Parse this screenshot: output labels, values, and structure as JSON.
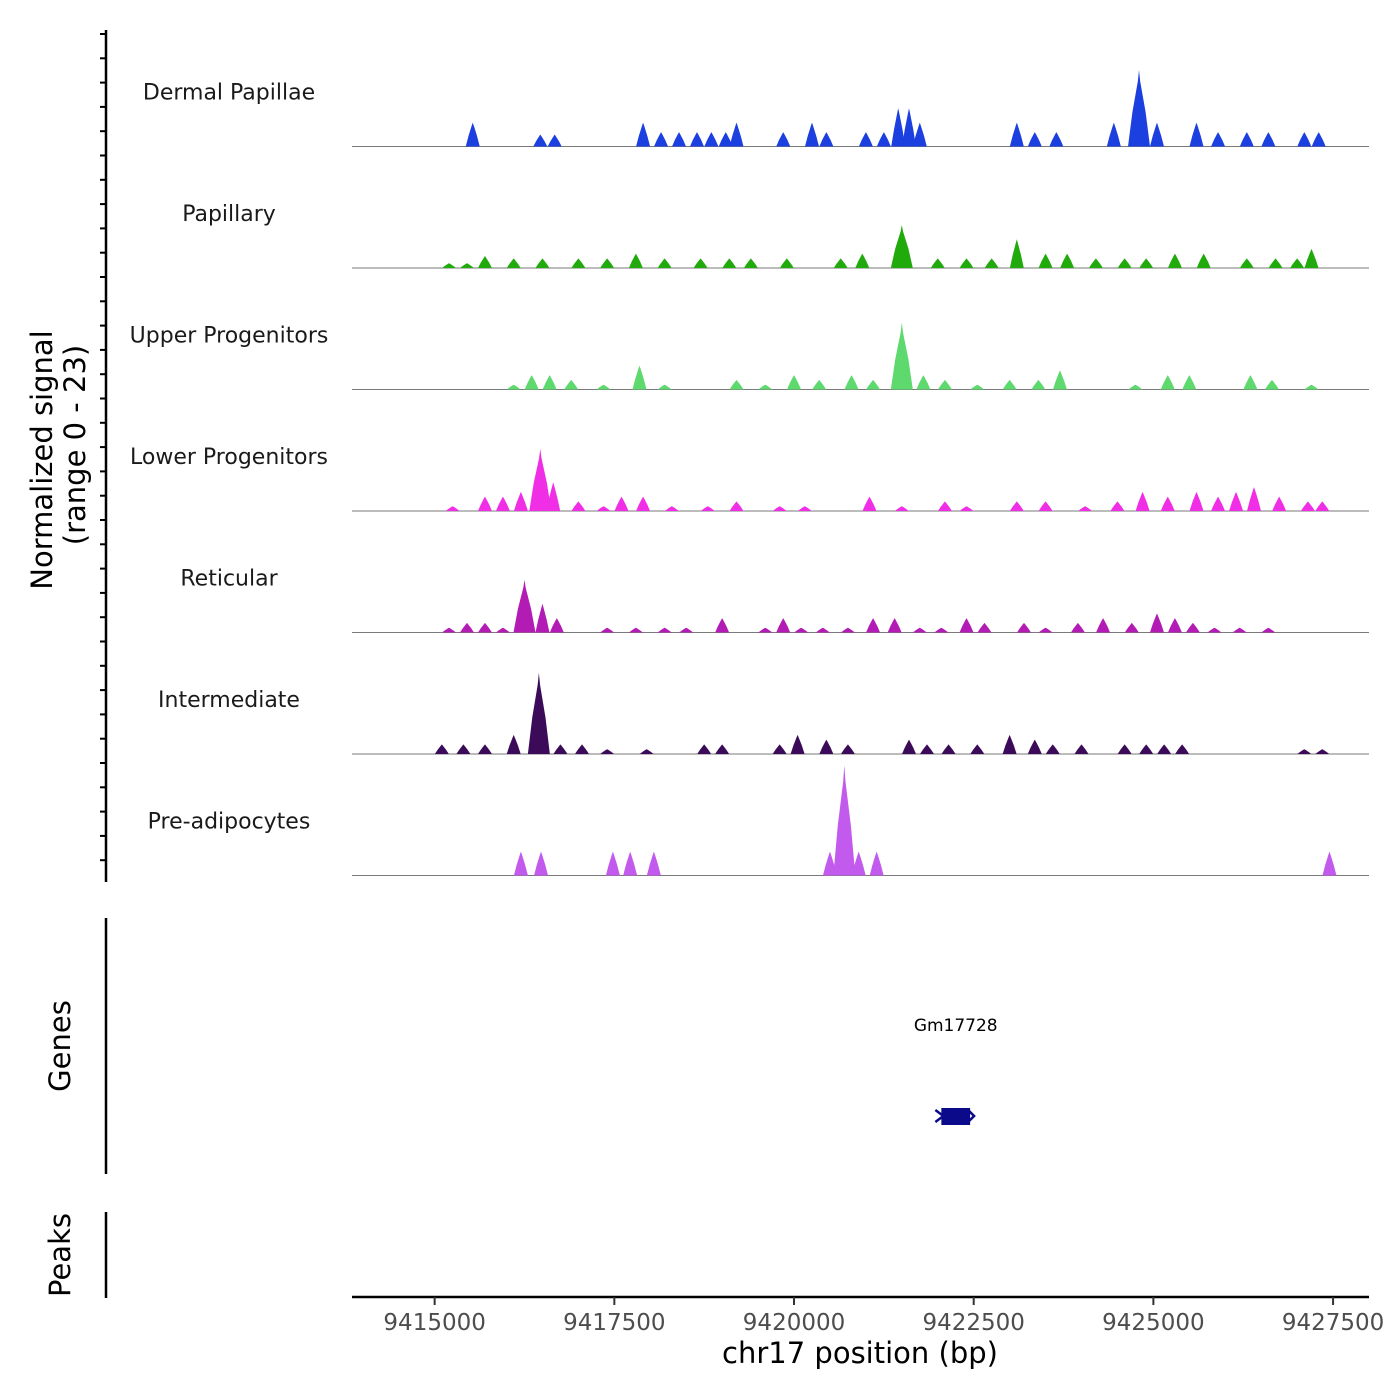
{
  "chart_data": {
    "type": "area",
    "title": "",
    "xlabel": "chr17 position (bp)",
    "ylabel": "Normalized signal",
    "ylabel_sub": "(range 0 - 23)",
    "xlim": [
      9413850,
      9428000
    ],
    "ylim": [
      0,
      23
    ],
    "x_ticks": [
      9415000,
      9417500,
      9420000,
      9422500,
      9425000,
      9427500
    ],
    "x_tick_labels": [
      "9415000",
      "9417500",
      "9420000",
      "9422500",
      "9425000",
      "9427500"
    ],
    "tracks": [
      {
        "name": "Dermal Papillae",
        "color": "#1c3fe0",
        "peaks": [
          [
            9415530,
            5
          ],
          [
            9416470,
            2.5
          ],
          [
            9416670,
            2.5
          ],
          [
            9417900,
            5
          ],
          [
            9418150,
            3
          ],
          [
            9418400,
            3
          ],
          [
            9418650,
            3
          ],
          [
            9418850,
            3
          ],
          [
            9419050,
            3
          ],
          [
            9419200,
            5
          ],
          [
            9419850,
            3
          ],
          [
            9420250,
            5
          ],
          [
            9420450,
            3
          ],
          [
            9421000,
            3
          ],
          [
            9421250,
            3
          ],
          [
            9421450,
            8
          ],
          [
            9421600,
            8
          ],
          [
            9421750,
            5
          ],
          [
            9423100,
            5
          ],
          [
            9423350,
            3
          ],
          [
            9423650,
            3
          ],
          [
            9424450,
            5
          ],
          [
            9424800,
            16
          ],
          [
            9425050,
            5
          ],
          [
            9425600,
            5
          ],
          [
            9425900,
            3
          ],
          [
            9426300,
            3
          ],
          [
            9426600,
            3
          ],
          [
            9427100,
            3
          ],
          [
            9427300,
            3
          ]
        ]
      },
      {
        "name": "Papillary",
        "color": "#20aa0c",
        "peaks": [
          [
            9415200,
            1
          ],
          [
            9415450,
            1
          ],
          [
            9415700,
            2.5
          ],
          [
            9416100,
            2
          ],
          [
            9416500,
            2
          ],
          [
            9417000,
            2
          ],
          [
            9417400,
            2
          ],
          [
            9417800,
            3
          ],
          [
            9418200,
            2
          ],
          [
            9418700,
            2
          ],
          [
            9419100,
            2
          ],
          [
            9419400,
            2
          ],
          [
            9419900,
            2
          ],
          [
            9420650,
            2
          ],
          [
            9420950,
            3
          ],
          [
            9421500,
            9
          ],
          [
            9422000,
            2
          ],
          [
            9422400,
            2
          ],
          [
            9422750,
            2
          ],
          [
            9423100,
            6
          ],
          [
            9423500,
            3
          ],
          [
            9423800,
            3
          ],
          [
            9424200,
            2
          ],
          [
            9424600,
            2
          ],
          [
            9424900,
            2
          ],
          [
            9425300,
            3
          ],
          [
            9425700,
            3
          ],
          [
            9426300,
            2
          ],
          [
            9426700,
            2
          ],
          [
            9427000,
            2
          ],
          [
            9427200,
            4
          ]
        ]
      },
      {
        "name": "Upper Progenitors",
        "color": "#5ed96e",
        "peaks": [
          [
            9416100,
            1
          ],
          [
            9416350,
            3
          ],
          [
            9416600,
            3
          ],
          [
            9416900,
            2
          ],
          [
            9417350,
            1
          ],
          [
            9417850,
            5
          ],
          [
            9418200,
            1
          ],
          [
            9419200,
            2
          ],
          [
            9419600,
            1
          ],
          [
            9420000,
            3
          ],
          [
            9420350,
            2
          ],
          [
            9420800,
            3
          ],
          [
            9421100,
            2
          ],
          [
            9421500,
            14
          ],
          [
            9421800,
            3
          ],
          [
            9422100,
            2
          ],
          [
            9422550,
            1
          ],
          [
            9423000,
            2
          ],
          [
            9423400,
            2
          ],
          [
            9423700,
            4
          ],
          [
            9424750,
            1
          ],
          [
            9425200,
            3
          ],
          [
            9425500,
            3
          ],
          [
            9426350,
            3
          ],
          [
            9426650,
            2
          ],
          [
            9427200,
            1
          ]
        ]
      },
      {
        "name": "Lower Progenitors",
        "color": "#ef2ee6",
        "peaks": [
          [
            9415250,
            1
          ],
          [
            9415700,
            3
          ],
          [
            9415950,
            3
          ],
          [
            9416200,
            4
          ],
          [
            9416470,
            13
          ],
          [
            9416650,
            6
          ],
          [
            9417000,
            2
          ],
          [
            9417350,
            1
          ],
          [
            9417600,
            3
          ],
          [
            9417900,
            3
          ],
          [
            9418300,
            1
          ],
          [
            9418800,
            1
          ],
          [
            9419200,
            2
          ],
          [
            9419800,
            1
          ],
          [
            9420150,
            1
          ],
          [
            9421050,
            3
          ],
          [
            9421500,
            1
          ],
          [
            9422100,
            2
          ],
          [
            9422400,
            1
          ],
          [
            9423100,
            2
          ],
          [
            9423500,
            2
          ],
          [
            9424050,
            1
          ],
          [
            9424500,
            2
          ],
          [
            9424850,
            4
          ],
          [
            9425200,
            3
          ],
          [
            9425600,
            4
          ],
          [
            9425900,
            3
          ],
          [
            9426150,
            4
          ],
          [
            9426400,
            5
          ],
          [
            9426750,
            3
          ],
          [
            9427150,
            2
          ],
          [
            9427350,
            2
          ]
        ]
      },
      {
        "name": "Reticular",
        "color": "#b31cb4",
        "peaks": [
          [
            9415200,
            1
          ],
          [
            9415450,
            2
          ],
          [
            9415700,
            2
          ],
          [
            9415950,
            1
          ],
          [
            9416250,
            11
          ],
          [
            9416500,
            6
          ],
          [
            9416700,
            3
          ],
          [
            9417400,
            1
          ],
          [
            9417800,
            1
          ],
          [
            9418200,
            1
          ],
          [
            9418500,
            1
          ],
          [
            9419000,
            3
          ],
          [
            9419600,
            1
          ],
          [
            9419850,
            3
          ],
          [
            9420100,
            1
          ],
          [
            9420400,
            1
          ],
          [
            9420750,
            1
          ],
          [
            9421100,
            3
          ],
          [
            9421400,
            3
          ],
          [
            9421750,
            1
          ],
          [
            9422050,
            1
          ],
          [
            9422400,
            3
          ],
          [
            9422650,
            2
          ],
          [
            9423200,
            2
          ],
          [
            9423500,
            1
          ],
          [
            9423950,
            2
          ],
          [
            9424300,
            3
          ],
          [
            9424700,
            2
          ],
          [
            9425050,
            4
          ],
          [
            9425300,
            3
          ],
          [
            9425550,
            2
          ],
          [
            9425850,
            1
          ],
          [
            9426200,
            1
          ],
          [
            9426600,
            1
          ]
        ]
      },
      {
        "name": "Intermediate",
        "color": "#3b0b59",
        "peaks": [
          [
            9415100,
            2
          ],
          [
            9415400,
            2
          ],
          [
            9415700,
            2
          ],
          [
            9416100,
            4
          ],
          [
            9416450,
            17
          ],
          [
            9416750,
            2
          ],
          [
            9417050,
            2
          ],
          [
            9417400,
            1
          ],
          [
            9417950,
            1
          ],
          [
            9418750,
            2
          ],
          [
            9419000,
            2
          ],
          [
            9419800,
            2
          ],
          [
            9420050,
            4
          ],
          [
            9420450,
            3
          ],
          [
            9420750,
            2
          ],
          [
            9421600,
            3
          ],
          [
            9421850,
            2
          ],
          [
            9422150,
            2
          ],
          [
            9422550,
            2
          ],
          [
            9423000,
            4
          ],
          [
            9423350,
            3
          ],
          [
            9423600,
            2
          ],
          [
            9424000,
            2
          ],
          [
            9424600,
            2
          ],
          [
            9424900,
            2
          ],
          [
            9425150,
            2
          ],
          [
            9425400,
            2
          ],
          [
            9427100,
            1
          ],
          [
            9427350,
            1
          ]
        ]
      },
      {
        "name": "Pre-adipocytes",
        "color": "#c25aee",
        "peaks": [
          [
            9416200,
            5
          ],
          [
            9416480,
            5
          ],
          [
            9417480,
            5
          ],
          [
            9417720,
            5
          ],
          [
            9418050,
            5
          ],
          [
            9420500,
            5
          ],
          [
            9420700,
            23
          ],
          [
            9420900,
            5
          ],
          [
            9421150,
            5
          ],
          [
            9427450,
            5
          ]
        ]
      }
    ],
    "genes": [
      {
        "name": "Gm17728",
        "start": 9422050,
        "end": 9422450
      }
    ],
    "genes_label": "Genes",
    "peaks_label": "Peaks"
  }
}
